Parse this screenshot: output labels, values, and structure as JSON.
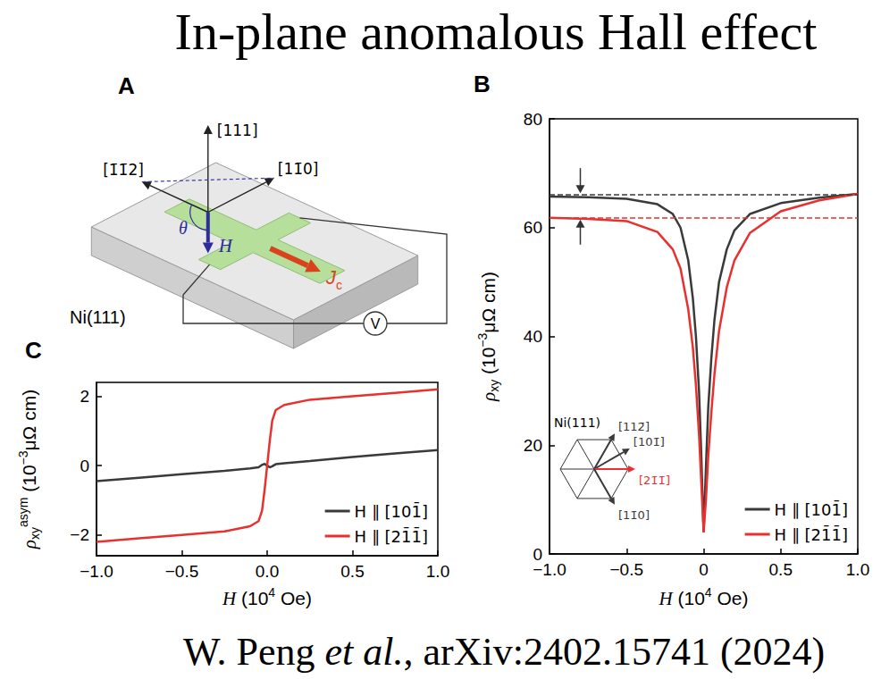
{
  "title": "In-plane anomalous Hall effect",
  "citation": [
    {
      "text": "W. Peng "
    },
    {
      "text": "et al.",
      "style": "italic"
    },
    {
      "text": ", arXiv:2402.15741 (2024)"
    }
  ],
  "diagram": {
    "panel": "A",
    "up_axis": "[111]",
    "left_axis": "[1̄1̄2]",
    "right_axis": "[11̄0]",
    "angle": "θ",
    "field": "H",
    "current": [
      {
        "text": "J",
        "style": "italic"
      },
      {
        "text": "c",
        "style": "sub"
      }
    ],
    "voltmeter": "V",
    "substrate": "Ni(111)"
  },
  "chart_data": [
    {
      "panel": "B",
      "type": "line",
      "xlabel": [
        {
          "text": "H",
          "style": "italic"
        },
        {
          "text": " (10"
        },
        {
          "text": "4",
          "style": "sup"
        },
        {
          "text": " Oe)"
        }
      ],
      "ylabel": [
        {
          "text": "ρ",
          "style": "italic"
        },
        {
          "text": "xy",
          "style": "sub"
        },
        {
          "text": " (10"
        },
        {
          "text": "−3",
          "style": "sup"
        },
        {
          "text": "μΩ cm)"
        }
      ],
      "x": [
        -1,
        -0.75,
        -0.5,
        -0.3,
        -0.2,
        -0.15,
        -0.1,
        -0.07,
        -0.05,
        -0.03,
        -0.015,
        0,
        0.015,
        0.03,
        0.05,
        0.07,
        0.1,
        0.15,
        0.2,
        0.3,
        0.5,
        0.75,
        1
      ],
      "series": [
        {
          "name": "H ∥ [101̄]",
          "color": "#3a3a3a",
          "values": [
            65.7,
            65.6,
            65.3,
            64.3,
            62.5,
            60,
            54,
            47,
            40,
            30,
            18,
            4,
            16,
            27,
            36,
            43,
            50,
            56,
            59.5,
            62.5,
            64.5,
            65.5,
            66.2
          ]
        },
        {
          "name": "H ∥ [21̄1̄]",
          "color": "#e8312f",
          "values": [
            61.8,
            61.6,
            61.2,
            59.2,
            56,
            52.5,
            45,
            38,
            31,
            22,
            13,
            4,
            10,
            18,
            26,
            33,
            41,
            49,
            54,
            59,
            63,
            65,
            66.2
          ]
        }
      ],
      "xlim": [
        -1,
        1
      ],
      "xticks": [
        {
          "value": -1,
          "label": "−1.0"
        },
        {
          "value": -0.5,
          "label": "−0.5"
        },
        0,
        0.5,
        {
          "value": 1,
          "label": "1.0"
        }
      ],
      "ylim": [
        0,
        80
      ],
      "yticks": [
        0,
        20,
        40,
        60,
        80
      ],
      "grid": false,
      "legend": "lower right",
      "reference_lines": [
        {
          "value": 66,
          "color": "#3a3a3a"
        },
        {
          "value": 61.8,
          "color": "#e8312f"
        }
      ],
      "gap_arrow_x": -0.8,
      "inset": {
        "title": "Ni(111)",
        "directions": [
          {
            "label": "[112̄]",
            "angle_deg": 60,
            "color": "#3a3a3a"
          },
          {
            "label": "[101̄]",
            "angle_deg": 30,
            "color": "#3a3a3a"
          },
          {
            "label": "[21̄1̄]",
            "angle_deg": 0,
            "color": "#e8312f"
          },
          {
            "label": "[11̄0]",
            "angle_deg": -60,
            "color": "#3a3a3a"
          }
        ]
      }
    },
    {
      "panel": "C",
      "type": "line",
      "xlabel": [
        {
          "text": "H",
          "style": "italic"
        },
        {
          "text": " (10"
        },
        {
          "text": "4",
          "style": "sup"
        },
        {
          "text": " Oe)"
        }
      ],
      "ylabel": [
        {
          "text": "ρ",
          "style": "italic"
        },
        {
          "text": "xy",
          "style": "sub"
        },
        {
          "text": "asym",
          "style": "sup"
        },
        {
          "text": " (10"
        },
        {
          "text": "−3",
          "style": "sup"
        },
        {
          "text": "μΩ cm)"
        }
      ],
      "x": [
        -1,
        -0.75,
        -0.5,
        -0.25,
        -0.1,
        -0.05,
        -0.03,
        -0.015,
        0,
        0.015,
        0.03,
        0.05,
        0.1,
        0.25,
        0.5,
        0.75,
        1
      ],
      "series": [
        {
          "name": "H ∥ [101̄]",
          "color": "#3a3a3a",
          "values": [
            -0.45,
            -0.35,
            -0.25,
            -0.15,
            -0.08,
            -0.05,
            0.02,
            0.05,
            0,
            -0.05,
            -0.02,
            0.04,
            0.07,
            0.13,
            0.25,
            0.35,
            0.45
          ]
        },
        {
          "name": "H ∥ [21̄1̄]",
          "color": "#e8312f",
          "values": [
            -2.2,
            -2.1,
            -2.0,
            -1.9,
            -1.75,
            -1.6,
            -1.3,
            -0.7,
            0,
            0.7,
            1.3,
            1.6,
            1.75,
            1.9,
            2.0,
            2.1,
            2.2
          ]
        }
      ],
      "xlim": [
        -1,
        1
      ],
      "xticks": [
        {
          "value": -1,
          "label": "−1.0"
        },
        {
          "value": -0.5,
          "label": "−0.5"
        },
        {
          "value": 0,
          "label": "0.0"
        },
        0.5,
        {
          "value": 1,
          "label": "1.0"
        }
      ],
      "ylim": [
        -2.6,
        2.4
      ],
      "yticks": [
        {
          "value": -2,
          "label": "−2"
        },
        0,
        2
      ],
      "grid": false,
      "legend": "lower right"
    }
  ]
}
